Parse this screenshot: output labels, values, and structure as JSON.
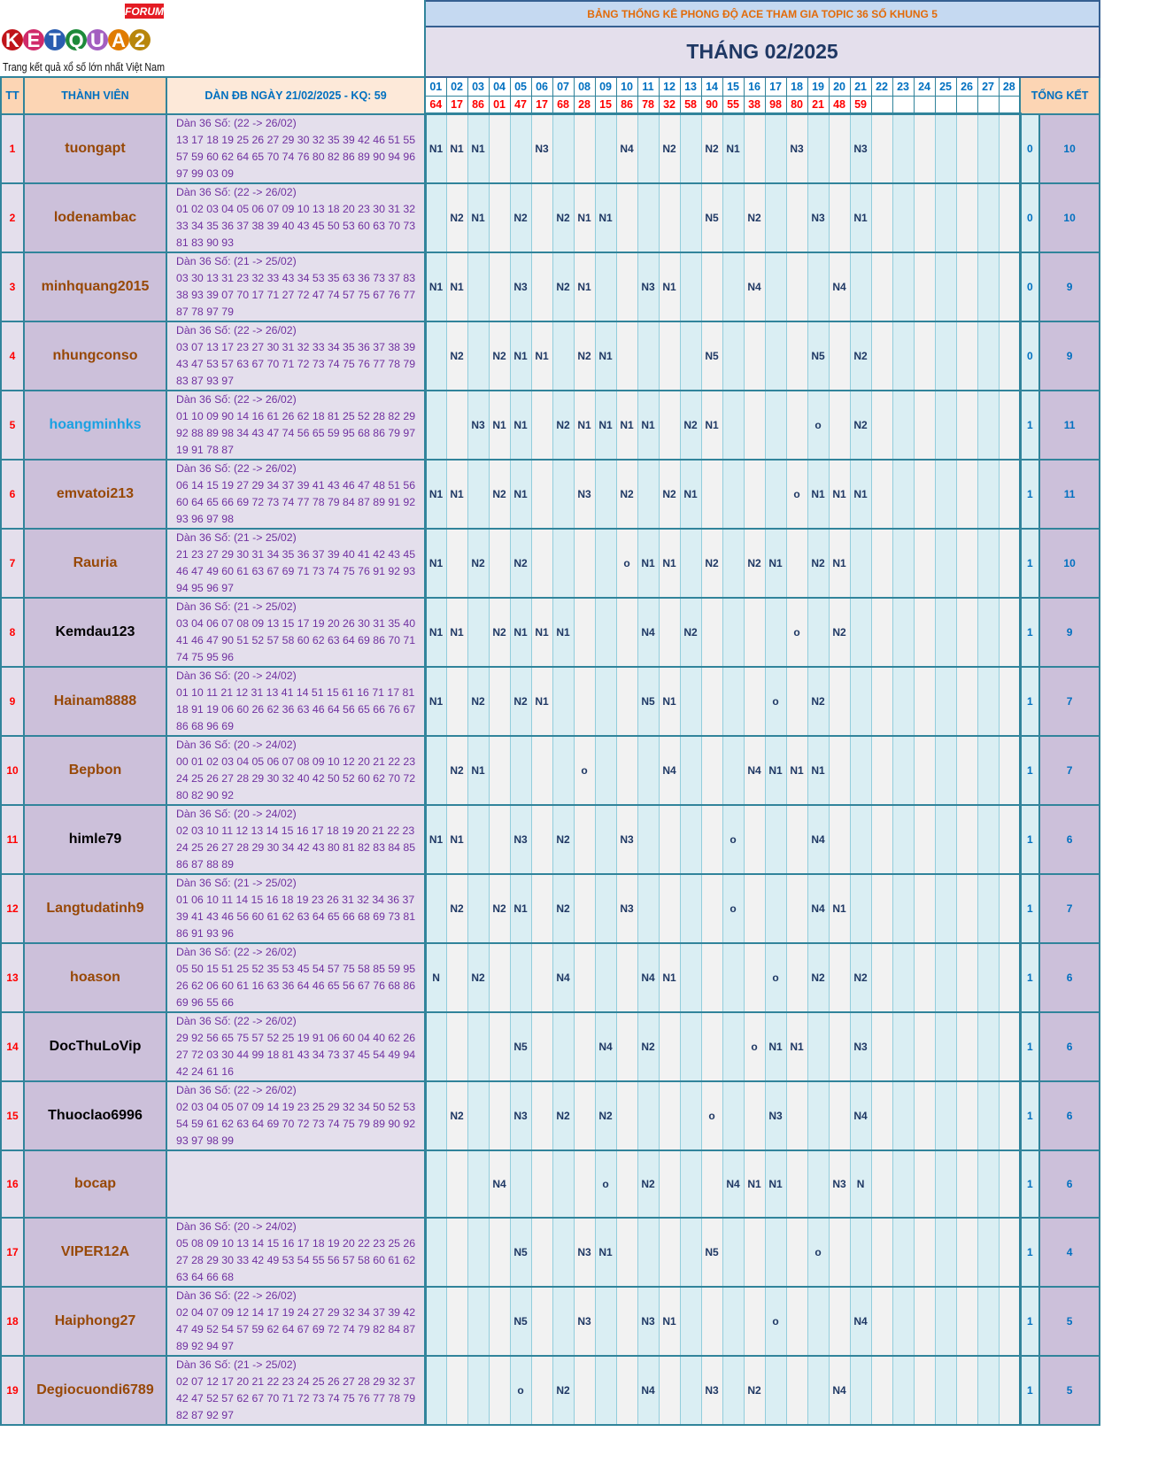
{
  "logo": {
    "text": "KETQUA2",
    "badge": "FORUM",
    "tagline": "Trang kết quả xổ số lớn nhất Việt Nam"
  },
  "header": {
    "title": "BẢNG THỐNG KÊ PHONG ĐỘ ACE THAM GIA TOPIC 36 SỐ KHUNG 5",
    "month": "THÁNG 02/2025",
    "col_tt": "TT",
    "col_member": "THÀNH VIÊN",
    "col_dan": "DÀN ĐB NGÀY 21/02/2025 - KQ: 59",
    "col_summary": "TỔNG KẾT"
  },
  "days": [
    "01",
    "02",
    "03",
    "04",
    "05",
    "06",
    "07",
    "08",
    "09",
    "10",
    "11",
    "12",
    "13",
    "14",
    "15",
    "16",
    "17",
    "18",
    "19",
    "20",
    "21",
    "22",
    "23",
    "24",
    "25",
    "26",
    "27",
    "28"
  ],
  "results": [
    "64",
    "17",
    "86",
    "01",
    "47",
    "17",
    "68",
    "28",
    "15",
    "86",
    "78",
    "32",
    "58",
    "90",
    "55",
    "38",
    "98",
    "80",
    "21",
    "48",
    "59",
    "",
    "",
    "",
    "",
    "",
    "",
    ""
  ],
  "colors": {
    "default_name": "#974806",
    "highlight_name": "#1ba1e2",
    "black_name": "#000000"
  },
  "members": [
    {
      "tt": "1",
      "name": "tuongapt",
      "color": "#974806",
      "dan_title": "Dàn 36 Số: (22 -> 26/02)",
      "dan": "13 17 18 19 25 26 27 29 30 32 35 39 42 46 51 55 57 59 60 62 64 65 70 74 76 80 82 86 89 90 94 96 97 99 03 09",
      "marks": [
        "N1",
        "N1",
        "N1",
        "",
        "",
        "N3",
        "",
        "",
        "",
        "N4",
        "",
        "N2",
        "",
        "N2",
        "N1",
        "",
        "",
        "N3",
        "",
        "",
        "N3",
        "",
        "",
        "",
        "",
        "",
        "",
        ""
      ],
      "s1": "0",
      "s2": "10"
    },
    {
      "tt": "2",
      "name": "lodenambac",
      "color": "#974806",
      "dan_title": "Dàn 36 Số: (22 -> 26/02)",
      "dan": "01 02 03 04 05 06 07 09 10 13 18 20 23 30 31 32 33 34 35 36 37 38 39 40 43 45 50 53 60 63 70 73 81 83 90 93",
      "marks": [
        "",
        "N2",
        "N1",
        "",
        "N2",
        "",
        "N2",
        "N1",
        "N1",
        "",
        "",
        "",
        "",
        "N5",
        "",
        "N2",
        "",
        "",
        "N3",
        "",
        "N1",
        "",
        "",
        "",
        "",
        "",
        "",
        ""
      ],
      "s1": "0",
      "s2": "10"
    },
    {
      "tt": "3",
      "name": "minhquang2015",
      "color": "#974806",
      "dan_title": "Dàn 36 Số: (21 -> 25/02)",
      "dan": "03 30 13 31 23 32 33 43 34 53 35 63 36 73 37 83 38 93 39 07 70 17 71 27 72 47 74 57 75 67 76 77 87 78 97 79",
      "marks": [
        "N1",
        "N1",
        "",
        "",
        "N3",
        "",
        "N2",
        "N1",
        "",
        "",
        "N3",
        "N1",
        "",
        "",
        "",
        "N4",
        "",
        "",
        "",
        "N4",
        "",
        "",
        "",
        "",
        "",
        "",
        "",
        ""
      ],
      "s1": "0",
      "s2": "9"
    },
    {
      "tt": "4",
      "name": "nhungconso",
      "color": "#974806",
      "dan_title": "Dàn 36 Số: (22 -> 26/02)",
      "dan": "03 07 13 17 23 27 30 31 32 33 34 35 36 37 38 39 43 47 53 57 63 67 70 71 72 73 74 75 76 77 78 79 83 87 93 97",
      "marks": [
        "",
        "N2",
        "",
        "N2",
        "N1",
        "N1",
        "",
        "N2",
        "N1",
        "",
        "",
        "",
        "",
        "N5",
        "",
        "",
        "",
        "",
        "N5",
        "",
        "N2",
        "",
        "",
        "",
        "",
        "",
        "",
        ""
      ],
      "s1": "0",
      "s2": "9"
    },
    {
      "tt": "5",
      "name": "hoangminhks",
      "color": "#1ba1e2",
      "dan_title": "Dàn 36 Số: (22 -> 26/02)",
      "dan": "01 10 09 90 14 16 61 26 62 18 81 25 52 28 82 29 92 88 89 98 34 43 47 74 56 65 59 95 68 86 79 97 19 91 78 87",
      "marks": [
        "",
        "",
        "N3",
        "N1",
        "N1",
        "",
        "N2",
        "N1",
        "N1",
        "N1",
        "N1",
        "",
        "N2",
        "N1",
        "",
        "",
        "",
        "",
        "o",
        "",
        "N2",
        "",
        "",
        "",
        "",
        "",
        "",
        ""
      ],
      "s1": "1",
      "s2": "11"
    },
    {
      "tt": "6",
      "name": "emvatoi213",
      "color": "#974806",
      "dan_title": "Dàn 36 Số: (22 -> 26/02)",
      "dan": "06 14 15 19 27 29 34 37 39 41 43 46 47 48 51 56 60 64 65 66 69 72 73 74 77 78 79 84 87 89 91 92 93 96 97 98",
      "marks": [
        "N1",
        "N1",
        "",
        "N2",
        "N1",
        "",
        "",
        "N3",
        "",
        "N2",
        "",
        "N2",
        "N1",
        "",
        "",
        "",
        "",
        "o",
        "N1",
        "N1",
        "N1",
        "",
        "",
        "",
        "",
        "",
        "",
        ""
      ],
      "s1": "1",
      "s2": "11"
    },
    {
      "tt": "7",
      "name": "Rauria",
      "color": "#974806",
      "dan_title": "Dàn 36 Số: (21 -> 25/02)",
      "dan": "21 23 27 29 30 31 34 35 36 37 39 40 41 42 43 45 46 47 49 60 61 63 67 69 71 73 74 75 76 91 92 93 94 95 96 97",
      "marks": [
        "N1",
        "",
        "N2",
        "",
        "N2",
        "",
        "",
        "",
        "",
        "o",
        "N1",
        "N1",
        "",
        "N2",
        "",
        "N2",
        "N1",
        "",
        "N2",
        "N1",
        "",
        "",
        "",
        "",
        "",
        "",
        "",
        ""
      ],
      "s1": "1",
      "s2": "10"
    },
    {
      "tt": "8",
      "name": "Kemdau123",
      "color": "#000000",
      "dan_title": "Dàn 36 Số: (21 -> 25/02)",
      "dan": "03 04 06 07 08 09 13 15 17 19 20 26 30 31 35 40 41 46 47 90 51 52 57 58 60 62 63 64 69 86 70 71 74 75 95 96",
      "marks": [
        "N1",
        "N1",
        "",
        "N2",
        "N1",
        "N1",
        "N1",
        "",
        "",
        "",
        "N4",
        "",
        "N2",
        "",
        "",
        "",
        "",
        "o",
        "",
        "N2",
        "",
        "",
        "",
        "",
        "",
        "",
        "",
        ""
      ],
      "s1": "1",
      "s2": "9"
    },
    {
      "tt": "9",
      "name": "Hainam8888",
      "color": "#974806",
      "dan_title": "Dàn 36 Số: (20 -> 24/02)",
      "dan": "01 10 11 21 12 31 13 41 14 51 15 61 16 71 17 81 18 91 19 06 60 26 62 36 63 46 64 56 65 66 76 67 86 68 96 69",
      "marks": [
        "N1",
        "",
        "N2",
        "",
        "N2",
        "N1",
        "",
        "",
        "",
        "",
        "N5",
        "N1",
        "",
        "",
        "",
        "",
        "o",
        "",
        "N2",
        "",
        "",
        "",
        "",
        "",
        "",
        "",
        "",
        ""
      ],
      "s1": "1",
      "s2": "7"
    },
    {
      "tt": "10",
      "name": "Bepbon",
      "color": "#974806",
      "dan_title": "Dàn 36 Số: (20 -> 24/02)",
      "dan": "00 01 02 03 04 05 06 07 08 09 10 12 20 21 22 23 24 25 26 27 28 29 30 32 40 42 50 52 60 62 70 72 80 82 90 92",
      "marks": [
        "",
        "N2",
        "N1",
        "",
        "",
        "",
        "",
        "o",
        "",
        "",
        "",
        "N4",
        "",
        "",
        "",
        "N4",
        "N1",
        "N1",
        "N1",
        "",
        "",
        "",
        "",
        "",
        "",
        "",
        "",
        ""
      ],
      "s1": "1",
      "s2": "7"
    },
    {
      "tt": "11",
      "name": "himle79",
      "color": "#000000",
      "dan_title": "Dàn 36 Số: (20 -> 24/02)",
      "dan": "02 03 10 11 12 13 14 15 16 17 18 19 20 21 22 23 24 25 26 27 28 29 30 34 42 43 80 81 82 83 84 85 86 87 88 89",
      "marks": [
        "N1",
        "N1",
        "",
        "",
        "N3",
        "",
        "N2",
        "",
        "",
        "N3",
        "",
        "",
        "",
        "",
        "o",
        "",
        "",
        "",
        "N4",
        "",
        "",
        "",
        "",
        "",
        "",
        "",
        "",
        ""
      ],
      "s1": "1",
      "s2": "6"
    },
    {
      "tt": "12",
      "name": "Langtudatinh9",
      "color": "#974806",
      "dan_title": "Dàn 36 Số: (21 -> 25/02)",
      "dan": "01 06 10 11 14 15 16 18 19 23 26 31 32 34 36 37 39 41 43 46 56 60 61 62 63 64 65 66 68 69 73 81 86 91 93 96",
      "marks": [
        "",
        "N2",
        "",
        "N2",
        "N1",
        "",
        "N2",
        "",
        "",
        "N3",
        "",
        "",
        "",
        "",
        "o",
        "",
        "",
        "",
        "N4",
        "N1",
        "",
        "",
        "",
        "",
        "",
        "",
        "",
        ""
      ],
      "s1": "1",
      "s2": "7"
    },
    {
      "tt": "13",
      "name": "hoason",
      "color": "#974806",
      "dan_title": "Dàn 36 Số: (22 -> 26/02)",
      "dan": "05 50 15 51 25 52 35 53 45 54 57 75 58 85 59 95 26 62 06 60 61 16 63 36 64 46 65 56 67 76 68 86 69 96 55 66",
      "marks": [
        "N",
        "",
        "N2",
        "",
        "",
        "",
        "N4",
        "",
        "",
        "",
        "N4",
        "N1",
        "",
        "",
        "",
        "",
        "o",
        "",
        "N2",
        "",
        "N2",
        "",
        "",
        "",
        "",
        "",
        "",
        ""
      ],
      "s1": "1",
      "s2": "6"
    },
    {
      "tt": "14",
      "name": "DocThuLoVip",
      "color": "#000000",
      "dan_title": "Dàn 36 Số: (22 -> 26/02)",
      "dan": "29 92 56 65 75 57 52 25 19 91 06 60 04 40 62 26 27 72 03 30 44 99 18 81 43 34 73 37 45 54 49 94 42 24 61 16",
      "marks": [
        "",
        "",
        "",
        "",
        "N5",
        "",
        "",
        "",
        "N4",
        "",
        "N2",
        "",
        "",
        "",
        "",
        "o",
        "N1",
        "N1",
        "",
        "",
        "N3",
        "",
        "",
        "",
        "",
        "",
        "",
        ""
      ],
      "s1": "1",
      "s2": "6"
    },
    {
      "tt": "15",
      "name": "Thuoclao6996",
      "color": "#000000",
      "dan_title": "Dàn 36 Số: (22 -> 26/02)",
      "dan": "02 03 04 05 07 09 14 19 23 25 29 32 34 50 52 53 54 59 61 62 63 64 69 70 72 73 74 75 79 89 90 92 93 97 98 99",
      "marks": [
        "",
        "N2",
        "",
        "",
        "N3",
        "",
        "N2",
        "",
        "N2",
        "",
        "",
        "",
        "",
        "o",
        "",
        "",
        "N3",
        "",
        "",
        "",
        "N4",
        "",
        "",
        "",
        "",
        "",
        "",
        ""
      ],
      "s1": "1",
      "s2": "6"
    },
    {
      "tt": "16",
      "name": "bocap",
      "color": "#974806",
      "dan_title": "",
      "dan": "",
      "marks": [
        "",
        "",
        "",
        "N4",
        "",
        "",
        "",
        "",
        "o",
        "",
        "N2",
        "",
        "",
        "",
        "N4",
        "N1",
        "N1",
        "",
        "",
        "N3",
        "N",
        "",
        "",
        "",
        "",
        "",
        "",
        ""
      ],
      "s1": "1",
      "s2": "6"
    },
    {
      "tt": "17",
      "name": "VIPER12A",
      "color": "#974806",
      "dan_title": "Dàn 36 Số: (20 -> 24/02)",
      "dan": "05 08 09 10 13 14 15 16 17 18 19 20 22 23 25 26 27 28 29 30 33 42 49 53 54 55 56 57 58 60 61 62 63 64 66 68",
      "marks": [
        "",
        "",
        "",
        "",
        "N5",
        "",
        "",
        "N3",
        "N1",
        "",
        "",
        "",
        "",
        "N5",
        "",
        "",
        "",
        "",
        "o",
        "",
        "",
        "",
        "",
        "",
        "",
        "",
        "",
        ""
      ],
      "s1": "1",
      "s2": "4"
    },
    {
      "tt": "18",
      "name": "Haiphong27",
      "color": "#974806",
      "dan_title": "Dàn 36 Số: (22 -> 26/02)",
      "dan": "02 04 07 09 12 14 17 19 24 27 29 32 34 37 39 42 47 49 52 54 57 59 62 64 67 69 72 74 79 82 84 87 89 92 94 97",
      "marks": [
        "",
        "",
        "",
        "",
        "N5",
        "",
        "",
        "N3",
        "",
        "",
        "N3",
        "N1",
        "",
        "",
        "",
        "",
        "o",
        "",
        "",
        "",
        "N4",
        "",
        "",
        "",
        "",
        "",
        "",
        ""
      ],
      "s1": "1",
      "s2": "5"
    },
    {
      "tt": "19",
      "name": "Degiocuondi6789",
      "color": "#974806",
      "dan_title": "Dàn 36 Số: (21 -> 25/02)",
      "dan": "02 07 12 17 20 21 22 23 24 25 26 27 28 29 32 37 42 47 52 57 62 67 70 71 72 73 74 75 76 77 78 79 82 87 92 97",
      "marks": [
        "",
        "",
        "",
        "",
        "o",
        "",
        "N2",
        "",
        "",
        "",
        "N4",
        "",
        "",
        "N3",
        "",
        "N2",
        "",
        "",
        "",
        "N4",
        "",
        "",
        "",
        "",
        "",
        "",
        "",
        ""
      ],
      "s1": "1",
      "s2": "5"
    }
  ]
}
